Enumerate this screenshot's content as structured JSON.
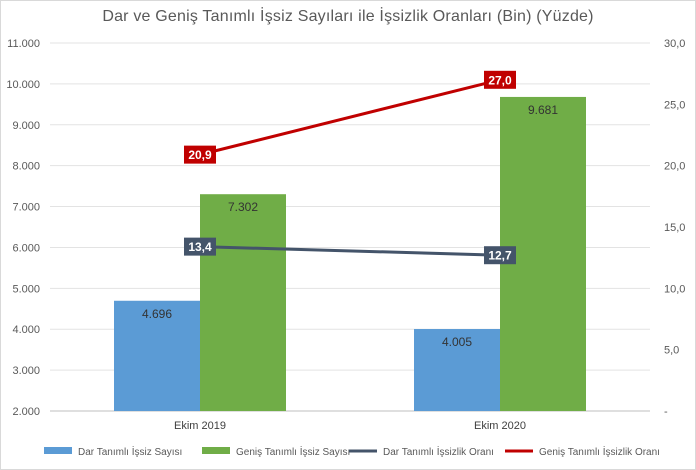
{
  "chart_data": {
    "type": "bar",
    "title": "Dar ve Geniş Tanımlı İşsiz Sayıları ile İşsizlik Oranları (Bin) (Yüzde)",
    "categories": [
      "Ekim 2019",
      "Ekim 2020"
    ],
    "y_left": {
      "ylim": [
        2000,
        11000
      ],
      "ticks": [
        "2.000",
        "3.000",
        "4.000",
        "5.000",
        "6.000",
        "7.000",
        "8.000",
        "9.000",
        "10.000",
        "11.000"
      ]
    },
    "y_right": {
      "ylim": [
        0,
        30
      ],
      "ticks": [
        "-",
        "5,0",
        "10,0",
        "15,0",
        "20,0",
        "25,0",
        "30,0"
      ]
    },
    "series": [
      {
        "name": "Dar Tanımlı İşsiz Sayısı",
        "type": "bar",
        "axis": "left",
        "color": "#5b9bd5",
        "values": [
          4696,
          4005
        ],
        "labels": [
          "4.696",
          "4.005"
        ]
      },
      {
        "name": "Geniş Tanımlı İşsiz Sayısı",
        "type": "bar",
        "axis": "left",
        "color": "#70ad47",
        "values": [
          7302,
          9681
        ],
        "labels": [
          "7.302",
          "9.681"
        ]
      },
      {
        "name": "Dar Tanımlı İşsizlik Oranı",
        "type": "line",
        "axis": "right",
        "color": "#44546a",
        "values": [
          13.4,
          12.7
        ],
        "labels": [
          "13,4",
          "12,7"
        ]
      },
      {
        "name": "Geniş Tanımlı İşsizlik Oranı",
        "type": "line",
        "axis": "right",
        "color": "#c00000",
        "values": [
          20.9,
          27.0
        ],
        "labels": [
          "20,9",
          "27,0"
        ]
      }
    ],
    "grid": true,
    "legend": "bottom"
  }
}
